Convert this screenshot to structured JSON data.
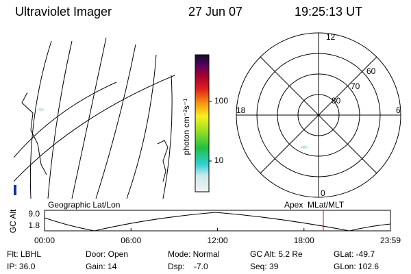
{
  "header": {
    "title": "Ultraviolet Imager",
    "date": "27 Jun 07",
    "time": "19:25:13 UT"
  },
  "colorbar": {
    "label": "photon cm⁻²s⁻¹",
    "ticks": [
      "100",
      "10"
    ]
  },
  "polar": {
    "mlt_labels": [
      "12",
      "18",
      "6",
      "0"
    ],
    "lat_labels": [
      "80",
      "70",
      "60"
    ]
  },
  "altitude_plot": {
    "left_label": "Geographic Lat/Lon",
    "right_label": "Apex  MLat/MLT",
    "y_label": "GC Alt",
    "y_ticks": [
      "9.0",
      "1.8"
    ],
    "x_ticks": [
      "00:00",
      "06:00",
      "12:00",
      "18:00",
      "23:59"
    ]
  },
  "footer": {
    "rows": [
      [
        "Flt: LBHL",
        "Door: Open",
        "Mode: Normal",
        "GC Alt: 5.2 Re",
        "GLat: -49.7"
      ],
      [
        "IP: 36.0",
        "Gain: 14",
        "Dsp:    -7.0",
        "Seq: 39",
        "GLon: 102.6"
      ]
    ]
  }
}
